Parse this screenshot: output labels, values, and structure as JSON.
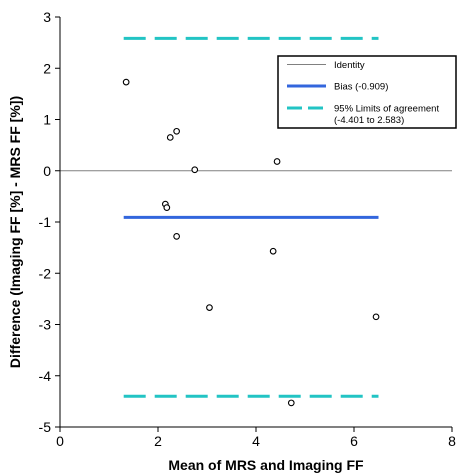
{
  "chart_data": {
    "type": "scatter",
    "xlabel": "Mean of MRS and Imaging FF",
    "ylabel": "Difference (Imaging FF [%] - MRS FF [%])",
    "xlim": [
      0,
      8
    ],
    "ylim": [
      -5,
      3
    ],
    "xticks": [
      "0",
      "2",
      "4",
      "6",
      "8"
    ],
    "yticks": [
      "-5",
      "-4",
      "-3",
      "-2",
      "-1",
      "0",
      "1",
      "2",
      "3"
    ],
    "grid": false,
    "legend_position": "top-right",
    "points": [
      {
        "x": 1.35,
        "y": 1.73
      },
      {
        "x": 2.25,
        "y": 0.65
      },
      {
        "x": 2.38,
        "y": 0.77
      },
      {
        "x": 2.75,
        "y": 0.02
      },
      {
        "x": 2.15,
        "y": -0.65
      },
      {
        "x": 2.18,
        "y": -0.72
      },
      {
        "x": 2.38,
        "y": -1.28
      },
      {
        "x": 3.05,
        "y": -2.67
      },
      {
        "x": 4.35,
        "y": -1.57
      },
      {
        "x": 4.43,
        "y": 0.18
      },
      {
        "x": 4.72,
        "y": -4.53
      },
      {
        "x": 6.45,
        "y": -2.85
      }
    ],
    "identity": {
      "label": "Identity",
      "y": 0,
      "color": "#808080"
    },
    "bias": {
      "label": "Bias (-0.909)",
      "y": -0.909,
      "x_range": [
        1.3,
        6.5
      ],
      "color": "#3366dd"
    },
    "limits": {
      "label_line1": "95% Limits of agreement",
      "label_line2": "(-4.401 to 2.583)",
      "upper": 2.583,
      "lower": -4.401,
      "x_range": [
        1.3,
        6.5
      ],
      "color": "#22c4c4"
    },
    "point_color": "#000000"
  }
}
